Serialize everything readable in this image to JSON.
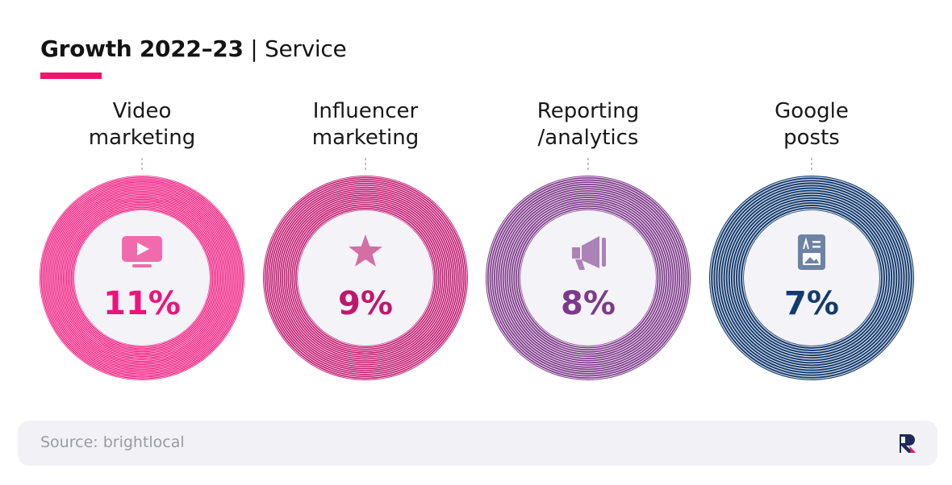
{
  "title": {
    "bold": "Growth 2022–23",
    "light": "| Service"
  },
  "accent_color": "#f0156a",
  "chart_data": {
    "type": "bar",
    "encoding": "concentric-rings",
    "categories": [
      "Video marketing",
      "Influencer marketing",
      "Reporting /analytics",
      "Google posts"
    ],
    "category_lines": [
      [
        "Video",
        "marketing"
      ],
      [
        "Influencer",
        "marketing"
      ],
      [
        "Reporting",
        "/analytics"
      ],
      [
        "Google",
        "posts"
      ]
    ],
    "values": [
      11,
      9,
      8,
      7
    ],
    "value_labels": [
      "11%",
      "9%",
      "8%",
      "7%"
    ],
    "unit": "%",
    "colors": [
      "#f0127a",
      "#c0166e",
      "#7e3a8a",
      "#143a6e"
    ],
    "icons": [
      "video-icon",
      "star-icon",
      "megaphone-icon",
      "image-post-icon"
    ]
  },
  "footer": {
    "source": "Source: brightlocal",
    "logo": "brightlocal-logo-icon"
  }
}
